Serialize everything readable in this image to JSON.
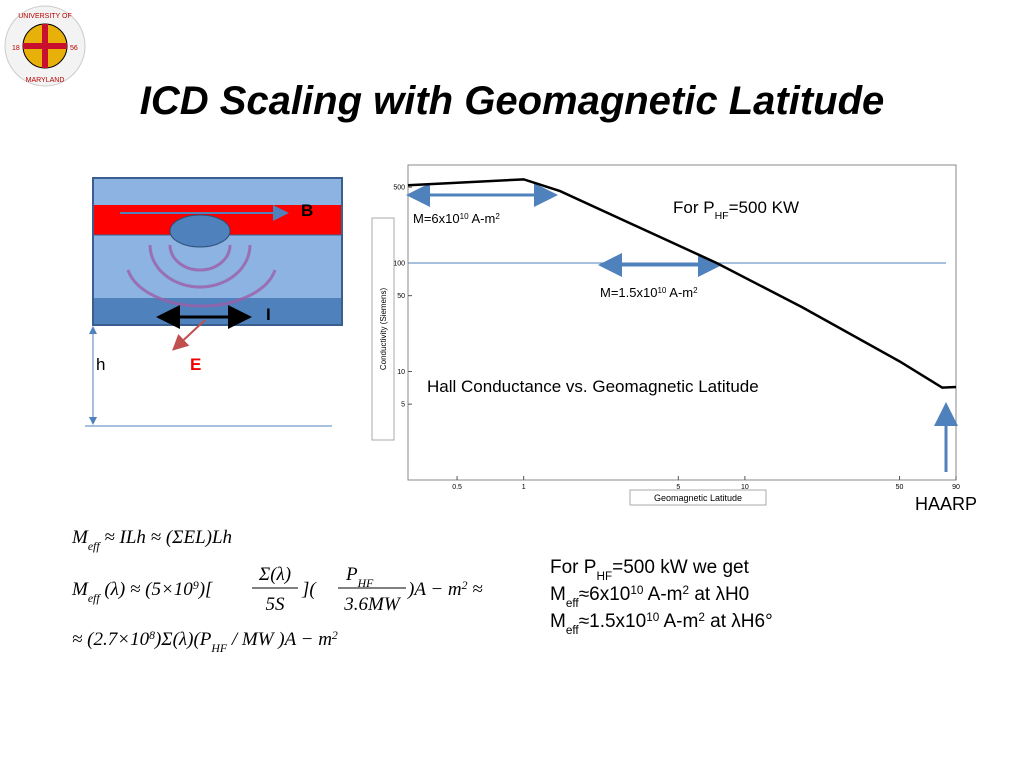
{
  "logo": {
    "top": "UNIVERSITY OF",
    "bottom": "MARYLAND",
    "left": "18",
    "right": "56"
  },
  "title": "ICD Scaling with Geomagnetic Latitude",
  "diagram": {
    "b": "B",
    "i": "I",
    "h": "h",
    "e": "E"
  },
  "chart_data": {
    "type": "line",
    "x_label": "Geomagnetic Latitude",
    "y_label": "Conductivity (Siemens)",
    "x": [
      0.3,
      1,
      1.46,
      7.45,
      18.2,
      50,
      78,
      90
    ],
    "series": [
      {
        "color": "#000000",
        "values": [
          520,
          590,
          460,
          100,
          39,
          12.4,
          7.1,
          7.2
        ]
      }
    ],
    "xlim": [
      0.3,
      90
    ],
    "ylim": [
      1,
      800
    ],
    "x_scale": "log",
    "y_scale": "log",
    "xticks": [
      0.5,
      1,
      5,
      10,
      50,
      90
    ],
    "yticks": [
      5,
      10,
      50,
      100,
      500
    ],
    "reference_line": {
      "y": 100,
      "color": "#4f81bd"
    },
    "annotations": [
      [
        {
          "t": "For P"
        },
        {
          "sub": "HF"
        },
        {
          "t": "=500 KW"
        }
      ],
      [
        {
          "t": "M=6x10"
        },
        {
          "sup": "10"
        },
        {
          "t": " A-m"
        },
        {
          "sup": "2"
        }
      ],
      [
        {
          "t": "M=1.5x10"
        },
        {
          "sup": "10"
        },
        {
          "t": " A-m"
        },
        {
          "sup": "2"
        }
      ],
      [
        {
          "t": "Hall Conductance vs. Geomagnetic Latitude"
        }
      ]
    ]
  },
  "caption": "HAARP",
  "equations": {
    "eq1": [
      {
        "t": "M"
      },
      {
        "sub": "eff"
      },
      {
        "t": "  ≈ ILh  ≈ (ΣEL)Lh"
      }
    ],
    "eq2": {
      "left": [
        {
          "t": "M"
        },
        {
          "sub": "eff"
        },
        {
          "t": " (λ) ≈ (5×10"
        },
        {
          "sup": "9"
        },
        {
          "t": ")["
        }
      ],
      "frac1": {
        "num": "Σ(λ)",
        "den": "5S"
      },
      "mid": "](",
      "frac2": {
        "num": [
          {
            "t": "P"
          },
          {
            "sub": "HF"
          }
        ],
        "den": "3.6MW"
      },
      "right": [
        {
          "t": ")A − m"
        },
        {
          "sup": "2"
        },
        {
          "t": "  ≈"
        }
      ]
    },
    "eq3": [
      {
        "t": "≈ (2.7×10"
      },
      {
        "sup": "8"
      },
      {
        "t": ")Σ(λ)(P"
      },
      {
        "sub": "HF"
      },
      {
        "t": " / MW )A − m"
      },
      {
        "sup": "2"
      }
    ]
  },
  "result": [
    [
      {
        "t": "For P"
      },
      {
        "sub": "HF"
      },
      {
        "t": "=500 kW we get"
      }
    ],
    [
      {
        "t": "M"
      },
      {
        "sub": "eff"
      },
      {
        "t": "≈6x10"
      },
      {
        "sup": "10"
      },
      {
        "t": " A-m"
      },
      {
        "sup": "2"
      },
      {
        "t": " at λH0"
      }
    ],
    [
      {
        "t": "M"
      },
      {
        "sub": "eff"
      },
      {
        "t": "≈1.5x10"
      },
      {
        "sup": "10"
      },
      {
        "t": " A-m"
      },
      {
        "sup": "2"
      },
      {
        "t": " at λH6°"
      }
    ]
  ]
}
